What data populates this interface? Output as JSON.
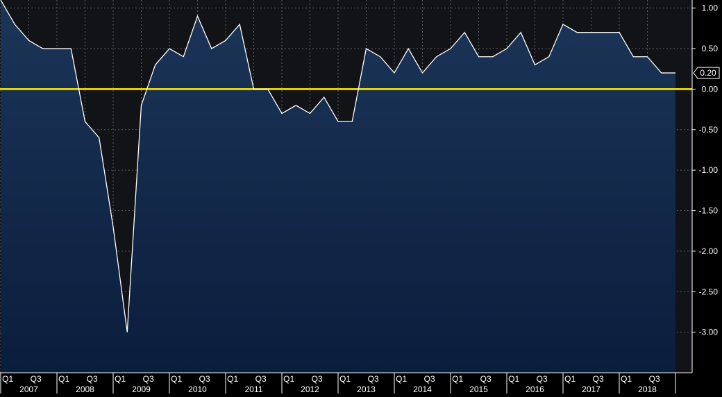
{
  "chart_data": {
    "type": "area",
    "title": "",
    "xlabel": "",
    "ylabel": "",
    "ylim": [
      -3.5,
      1.1
    ],
    "y_ticks": [
      1.0,
      0.5,
      0.0,
      -0.5,
      -1.0,
      -1.5,
      -2.0,
      -2.5,
      -3.0
    ],
    "y_tick_labels": [
      "1.00",
      "0.50",
      "0.00",
      "-0.50",
      "-1.00",
      "-1.50",
      "-2.00",
      "-2.50",
      "-3.00"
    ],
    "grid": true,
    "reference_line": {
      "value": 0.0,
      "color": "#ffee00"
    },
    "last_value_label": "0.20",
    "years": [
      "2007",
      "2008",
      "2009",
      "2010",
      "2011",
      "2012",
      "2013",
      "2014",
      "2015",
      "2016",
      "2017",
      "2018"
    ],
    "quarter_tick_labels": [
      "Q1",
      "Q3"
    ],
    "series": [
      {
        "x": [
          "2007 Q1",
          "2007 Q2",
          "2007 Q3",
          "2007 Q4",
          "2008 Q1",
          "2008 Q2",
          "2008 Q3",
          "2008 Q4",
          "2009 Q1",
          "2009 Q2",
          "2009 Q3",
          "2009 Q4",
          "2010 Q1",
          "2010 Q2",
          "2010 Q3",
          "2010 Q4",
          "2011 Q1",
          "2011 Q2",
          "2011 Q3",
          "2011 Q4",
          "2012 Q1",
          "2012 Q2",
          "2012 Q3",
          "2012 Q4",
          "2013 Q1",
          "2013 Q2",
          "2013 Q3",
          "2013 Q4",
          "2014 Q1",
          "2014 Q2",
          "2014 Q3",
          "2014 Q4",
          "2015 Q1",
          "2015 Q2",
          "2015 Q3",
          "2015 Q4",
          "2016 Q1",
          "2016 Q2",
          "2016 Q3",
          "2016 Q4",
          "2017 Q1",
          "2017 Q2",
          "2017 Q3",
          "2017 Q4",
          "2018 Q1",
          "2018 Q2",
          "2018 Q3",
          "2018 Q4"
        ],
        "values": [
          1.1,
          0.8,
          0.6,
          0.5,
          0.5,
          0.5,
          -0.4,
          -0.6,
          -1.7,
          -3.0,
          -0.2,
          0.3,
          0.5,
          0.4,
          0.9,
          0.5,
          0.6,
          0.8,
          0.0,
          0.0,
          -0.3,
          -0.2,
          -0.3,
          -0.1,
          -0.4,
          -0.4,
          0.5,
          0.4,
          0.2,
          0.5,
          0.2,
          0.4,
          0.5,
          0.7,
          0.4,
          0.4,
          0.5,
          0.7,
          0.3,
          0.4,
          0.8,
          0.7,
          0.7,
          0.7,
          0.7,
          0.4,
          0.4,
          0.2
        ]
      }
    ]
  },
  "colors": {
    "background": "#000000",
    "plot_background": "#121316",
    "fill_top": "#1b3558",
    "fill_bottom": "#0b1d3d",
    "line": "#ffffff",
    "zero_line": "#ffee00",
    "grid": "#5a5f66",
    "text": "#ffffff"
  }
}
